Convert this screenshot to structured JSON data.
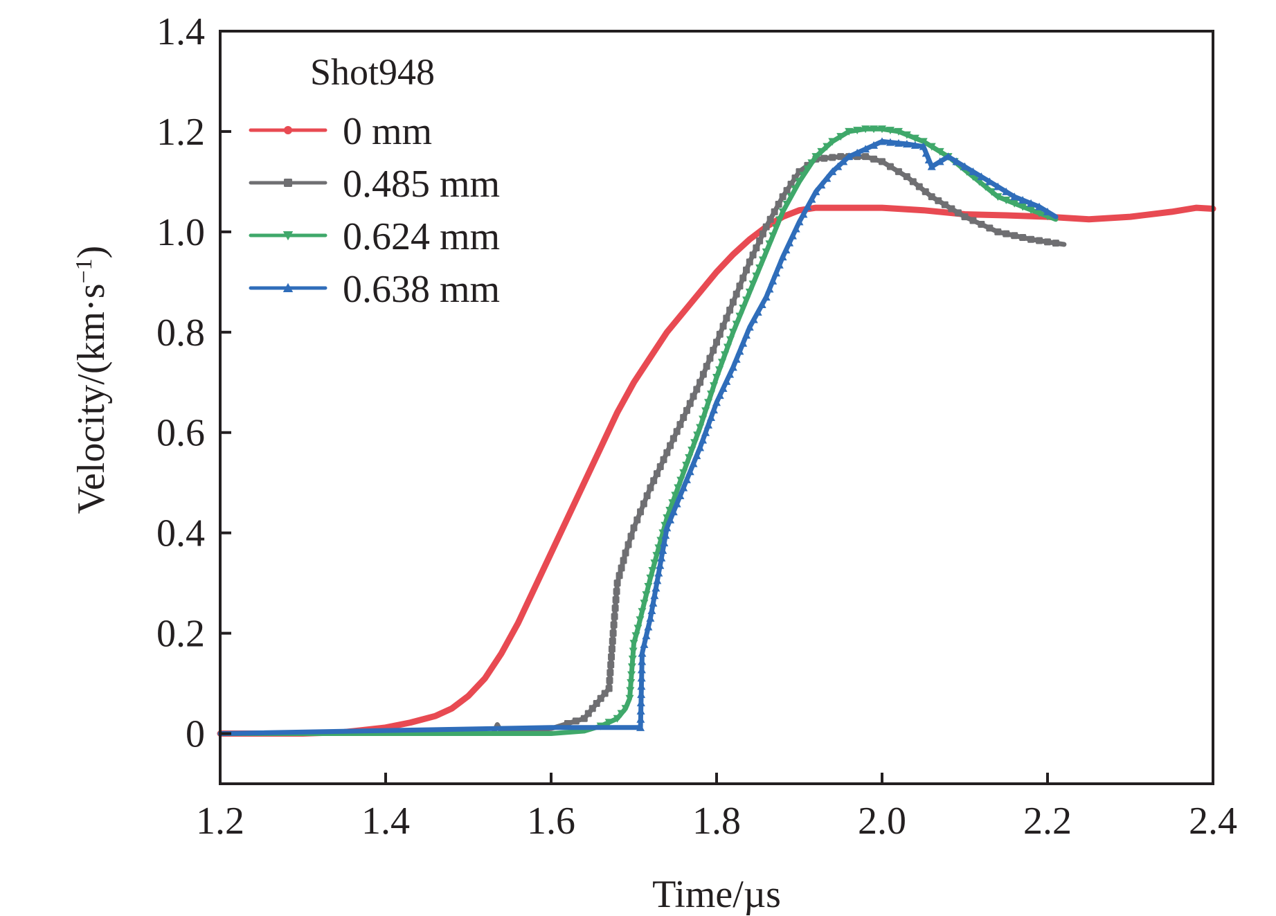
{
  "chart_data": {
    "type": "line",
    "title": "",
    "xlabel": "Time/µs",
    "ylabel_main": "Velocity/(km·s",
    "ylabel_sup": "−1",
    "ylabel_close": ")",
    "xlim": [
      1.2,
      2.4
    ],
    "ylim": [
      -0.1,
      1.4
    ],
    "xticks": [
      1.2,
      1.4,
      1.6,
      1.8,
      2.0,
      2.2,
      2.4
    ],
    "xtick_labels": [
      "1.2",
      "1.4",
      "1.6",
      "1.8",
      "2.0",
      "2.2",
      "2.4"
    ],
    "yticks": [
      0,
      0.2,
      0.4,
      0.6,
      0.8,
      1.0,
      1.2,
      1.4
    ],
    "ytick_labels": [
      "0",
      "0.2",
      "0.4",
      "0.6",
      "0.8",
      "1.0",
      "1.2",
      "1.4"
    ],
    "grid": false,
    "legend": {
      "title": "Shot948",
      "position": "top-left"
    },
    "series": [
      {
        "name": "0 mm",
        "color": "#e84a52",
        "marker": "circle",
        "x": [
          1.2,
          1.3,
          1.35,
          1.4,
          1.43,
          1.46,
          1.48,
          1.5,
          1.52,
          1.54,
          1.56,
          1.58,
          1.6,
          1.62,
          1.64,
          1.66,
          1.68,
          1.7,
          1.72,
          1.74,
          1.76,
          1.78,
          1.8,
          1.82,
          1.84,
          1.86,
          1.88,
          1.9,
          1.92,
          1.95,
          2.0,
          2.05,
          2.1,
          2.15,
          2.2,
          2.25,
          2.3,
          2.35,
          2.38,
          2.4
        ],
        "y": [
          0.0,
          0.0,
          0.003,
          0.012,
          0.022,
          0.035,
          0.05,
          0.075,
          0.11,
          0.16,
          0.22,
          0.29,
          0.36,
          0.43,
          0.5,
          0.57,
          0.64,
          0.7,
          0.75,
          0.8,
          0.84,
          0.88,
          0.92,
          0.955,
          0.985,
          1.01,
          1.03,
          1.043,
          1.048,
          1.048,
          1.048,
          1.043,
          1.035,
          1.033,
          1.03,
          1.025,
          1.03,
          1.04,
          1.048,
          1.046
        ]
      },
      {
        "name": "0.485 mm",
        "color": "#6f6f72",
        "marker": "square",
        "x": [
          1.2,
          1.53,
          1.535,
          1.54,
          1.6,
          1.62,
          1.64,
          1.65,
          1.66,
          1.67,
          1.675,
          1.68,
          1.69,
          1.7,
          1.72,
          1.74,
          1.76,
          1.78,
          1.8,
          1.82,
          1.84,
          1.86,
          1.88,
          1.9,
          1.92,
          1.95,
          1.98,
          2.0,
          2.03,
          2.06,
          2.1,
          2.14,
          2.18,
          2.22
        ],
        "y": [
          0.0,
          0.0,
          0.018,
          0.003,
          0.01,
          0.02,
          0.03,
          0.05,
          0.07,
          0.09,
          0.2,
          0.3,
          0.36,
          0.41,
          0.49,
          0.56,
          0.63,
          0.7,
          0.78,
          0.86,
          0.94,
          1.01,
          1.07,
          1.12,
          1.145,
          1.15,
          1.15,
          1.14,
          1.11,
          1.07,
          1.03,
          1.0,
          0.985,
          0.975
        ]
      },
      {
        "name": "0.624 mm",
        "color": "#3fa86a",
        "marker": "triangle-down",
        "x": [
          1.2,
          1.55,
          1.6,
          1.64,
          1.66,
          1.68,
          1.69,
          1.695,
          1.7,
          1.705,
          1.72,
          1.74,
          1.76,
          1.78,
          1.8,
          1.82,
          1.84,
          1.86,
          1.88,
          1.9,
          1.92,
          1.94,
          1.96,
          1.98,
          2.0,
          2.02,
          2.05,
          2.08,
          2.11,
          2.14,
          2.17,
          2.21
        ],
        "y": [
          0.0,
          0.0,
          0.0,
          0.005,
          0.015,
          0.03,
          0.05,
          0.07,
          0.18,
          0.21,
          0.31,
          0.43,
          0.52,
          0.61,
          0.71,
          0.8,
          0.88,
          0.96,
          1.04,
          1.1,
          1.15,
          1.18,
          1.2,
          1.205,
          1.205,
          1.2,
          1.18,
          1.15,
          1.11,
          1.07,
          1.05,
          1.025
        ]
      },
      {
        "name": "0.638 mm",
        "color": "#2f6dba",
        "marker": "triangle-up",
        "x": [
          1.2,
          1.6,
          1.65,
          1.7,
          1.708,
          1.71,
          1.72,
          1.73,
          1.74,
          1.76,
          1.78,
          1.8,
          1.82,
          1.84,
          1.86,
          1.88,
          1.9,
          1.92,
          1.94,
          1.96,
          1.98,
          2.0,
          2.03,
          2.05,
          2.06,
          2.08,
          2.1,
          2.13,
          2.16,
          2.19,
          2.21
        ],
        "y": [
          0.0,
          0.012,
          0.012,
          0.012,
          0.012,
          0.16,
          0.23,
          0.32,
          0.41,
          0.49,
          0.57,
          0.66,
          0.73,
          0.81,
          0.87,
          0.95,
          1.02,
          1.08,
          1.12,
          1.15,
          1.165,
          1.18,
          1.175,
          1.17,
          1.13,
          1.15,
          1.13,
          1.1,
          1.07,
          1.05,
          1.03
        ]
      }
    ]
  }
}
